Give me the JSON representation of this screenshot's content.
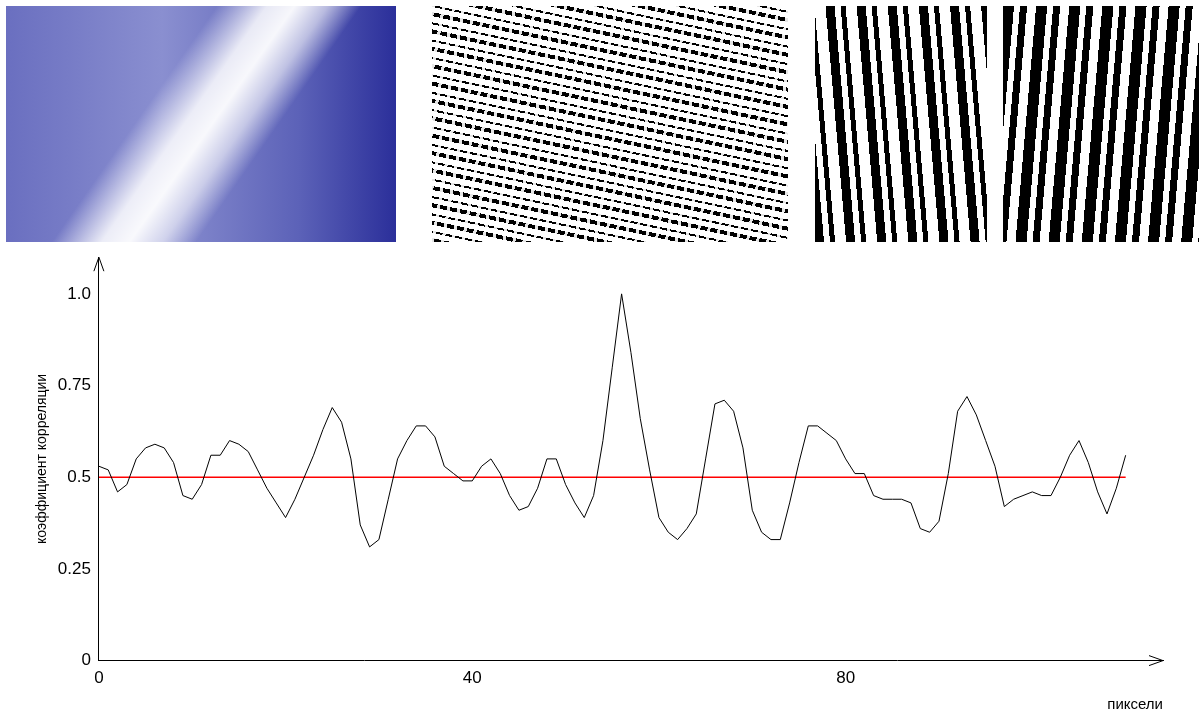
{
  "chart_data": {
    "type": "line",
    "x_label": "пиксели",
    "y_label": "коэффициент корреляции",
    "x": [
      0,
      1,
      2,
      3,
      4,
      5,
      6,
      7,
      8,
      9,
      10,
      11,
      12,
      13,
      14,
      15,
      16,
      17,
      18,
      19,
      20,
      21,
      22,
      23,
      24,
      25,
      26,
      27,
      28,
      29,
      30,
      31,
      32,
      33,
      34,
      35,
      36,
      37,
      38,
      39,
      40,
      41,
      42,
      43,
      44,
      45,
      46,
      47,
      48,
      49,
      50,
      51,
      52,
      53,
      54,
      55,
      56,
      57,
      58,
      59,
      60,
      61,
      62,
      63,
      64,
      65,
      66,
      67,
      68,
      69,
      70,
      71,
      72,
      73,
      74,
      75,
      76,
      77,
      78,
      79,
      80,
      81,
      82,
      83,
      84,
      85,
      86,
      87,
      88,
      89,
      90,
      91,
      92,
      93,
      94,
      95,
      96,
      97,
      98,
      99,
      100,
      101,
      102,
      103,
      104,
      105,
      106,
      107,
      108,
      109,
      110
    ],
    "values": [
      0.53,
      0.52,
      0.46,
      0.48,
      0.55,
      0.58,
      0.59,
      0.58,
      0.54,
      0.45,
      0.44,
      0.48,
      0.56,
      0.56,
      0.6,
      0.59,
      0.57,
      0.52,
      0.47,
      0.43,
      0.39,
      0.44,
      0.5,
      0.56,
      0.63,
      0.69,
      0.65,
      0.55,
      0.37,
      0.31,
      0.33,
      0.44,
      0.55,
      0.6,
      0.64,
      0.64,
      0.61,
      0.53,
      0.51,
      0.49,
      0.49,
      0.53,
      0.55,
      0.51,
      0.45,
      0.41,
      0.42,
      0.47,
      0.55,
      0.55,
      0.48,
      0.43,
      0.39,
      0.45,
      0.6,
      0.8,
      1.0,
      0.84,
      0.66,
      0.52,
      0.39,
      0.35,
      0.33,
      0.36,
      0.4,
      0.55,
      0.7,
      0.71,
      0.68,
      0.58,
      0.41,
      0.35,
      0.33,
      0.33,
      0.43,
      0.54,
      0.64,
      0.64,
      0.62,
      0.6,
      0.55,
      0.51,
      0.51,
      0.45,
      0.44,
      0.44,
      0.44,
      0.43,
      0.36,
      0.35,
      0.38,
      0.51,
      0.68,
      0.72,
      0.67,
      0.6,
      0.53,
      0.42,
      0.44,
      0.45,
      0.46,
      0.45,
      0.45,
      0.5,
      0.56,
      0.6,
      0.54,
      0.46,
      0.4,
      0.47,
      0.56
    ],
    "color": "#000000",
    "reference_line": {
      "y": 0.5,
      "color": "#ff0000"
    },
    "xlim": [
      0,
      114
    ],
    "xticks": [
      0,
      40,
      80
    ],
    "ylim": [
      0,
      1.1
    ],
    "yticks": [
      0,
      0.25,
      0.5,
      0.75,
      {
        "value": 1,
        "label": "1.0"
      }
    ],
    "grid": false
  }
}
